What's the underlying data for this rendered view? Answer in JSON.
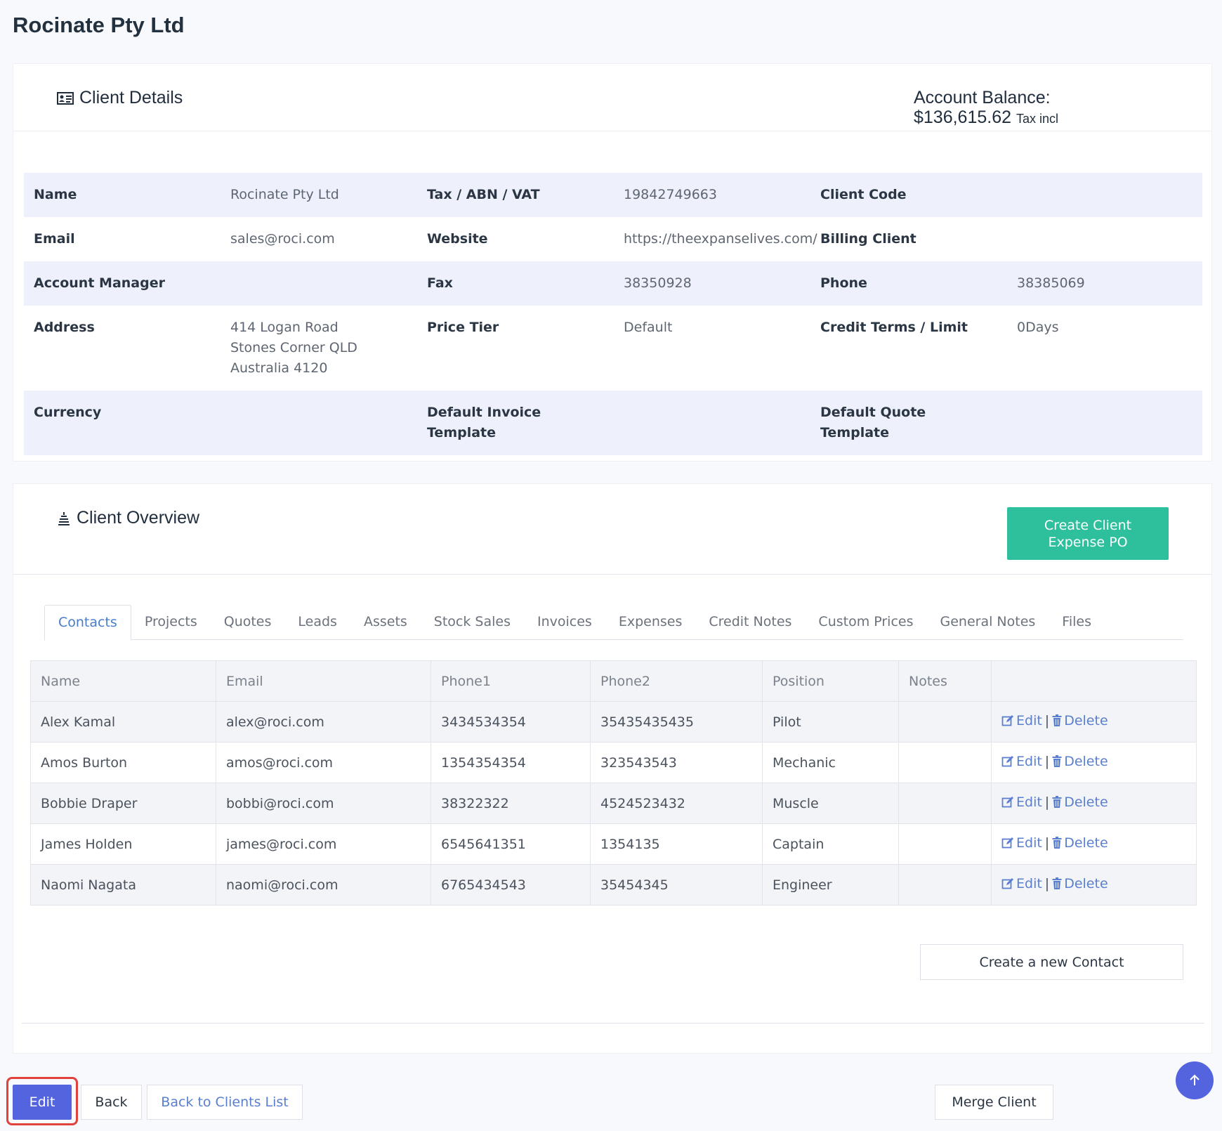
{
  "page": {
    "title": "Rocinate Pty Ltd"
  },
  "client_details": {
    "header": "Client Details",
    "header_icon": "id-card-icon",
    "balance_label": "Account Balance:",
    "balance_value": "$136,615.62",
    "balance_tax": "Tax incl",
    "rows": [
      {
        "l1": "Name",
        "v1": "Rocinate Pty Ltd",
        "l2": "Tax / ABN / VAT",
        "v2": "19842749663",
        "l3": "Client Code",
        "v3": ""
      },
      {
        "l1": "Email",
        "v1": "sales@roci.com",
        "l2": "Website",
        "v2": "https://theexpanselives.com/",
        "l3": "Billing Client",
        "v3": ""
      },
      {
        "l1": "Account Manager",
        "v1": "",
        "l2": "Fax",
        "v2": "38350928",
        "l3": "Phone",
        "v3": "38385069"
      },
      {
        "l1": "Address",
        "l2": "Price Tier",
        "v2": "Default",
        "l3": "Credit Terms / Limit",
        "v3": "0Days"
      },
      {
        "l1": "Currency",
        "v1": "",
        "l2": "Default Invoice Template",
        "v2": "",
        "l3": "Default Quote Template",
        "v3": ""
      }
    ],
    "address": {
      "line1": "414 Logan Road",
      "line2": "Stones Corner QLD",
      "line3": "Australia 4120"
    }
  },
  "client_overview": {
    "header": "Client Overview",
    "header_icon": "layers-icon",
    "create_po_label": "Create Client Expense PO",
    "tabs": [
      "Contacts",
      "Projects",
      "Quotes",
      "Leads",
      "Assets",
      "Stock Sales",
      "Invoices",
      "Expenses",
      "Credit Notes",
      "Custom Prices",
      "General Notes",
      "Files"
    ],
    "active_tab": "Contacts",
    "contacts": {
      "columns": [
        "Name",
        "Email",
        "Phone1",
        "Phone2",
        "Position",
        "Notes"
      ],
      "rows": [
        {
          "name": "Alex Kamal",
          "email": "alex@roci.com",
          "phone1": "3434534354",
          "phone2": "35435435435",
          "position": "Pilot",
          "notes": ""
        },
        {
          "name": "Amos Burton",
          "email": "amos@roci.com",
          "phone1": "1354354354",
          "phone2": "323543543",
          "position": "Mechanic",
          "notes": ""
        },
        {
          "name": "Bobbie Draper",
          "email": "bobbi@roci.com",
          "phone1": "38322322",
          "phone2": "4524523432",
          "position": "Muscle",
          "notes": ""
        },
        {
          "name": "James Holden",
          "email": "james@roci.com",
          "phone1": "6545641351",
          "phone2": "1354135",
          "position": "Captain",
          "notes": ""
        },
        {
          "name": "Naomi Nagata",
          "email": "naomi@roci.com",
          "phone1": "6765434543",
          "phone2": "35454345",
          "position": "Engineer",
          "notes": ""
        }
      ],
      "edit_label": "Edit",
      "separator": "|",
      "delete_label": "Delete"
    },
    "new_contact_label": "Create a new Contact"
  },
  "footer": {
    "edit_label": "Edit",
    "back_label": "Back",
    "back_list_label": "Back to Clients List",
    "merge_label": "Merge Client"
  },
  "colors": {
    "primary": "#5464df",
    "success": "#2ebf9c",
    "link": "#5a7fd0",
    "highlight": "#e0433d"
  }
}
